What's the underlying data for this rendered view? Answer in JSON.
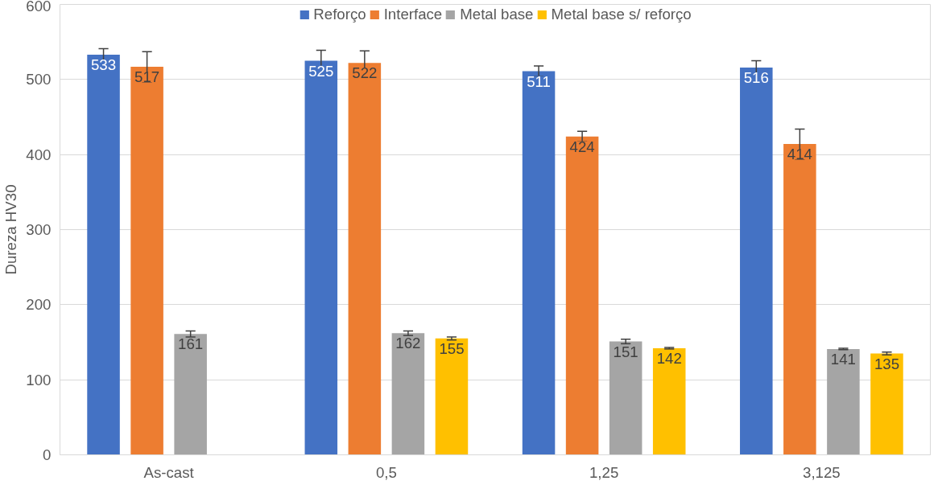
{
  "chart_data": {
    "type": "bar",
    "ylabel": "Dureza HV30",
    "categories": [
      "As-cast",
      "0,5",
      "1,25",
      "3,125"
    ],
    "series": [
      {
        "name": "Reforço",
        "color": "#4472c4",
        "values": [
          533,
          525,
          511,
          516
        ],
        "errors": [
          8,
          14,
          7,
          9
        ]
      },
      {
        "name": "Interface",
        "color": "#ed7d31",
        "values": [
          517,
          522,
          424,
          414
        ],
        "errors": [
          20,
          16,
          7,
          20
        ]
      },
      {
        "name": "Metal base",
        "color": "#a5a5a5",
        "values": [
          161,
          162,
          151,
          141
        ],
        "errors": [
          4,
          3,
          3,
          1
        ]
      },
      {
        "name": "Metal base s/ reforço",
        "color": "#ffc000",
        "values": [
          null,
          155,
          142,
          135
        ],
        "errors": [
          null,
          2,
          1,
          2
        ]
      }
    ],
    "ylim": [
      0,
      600
    ],
    "yticks": [
      0,
      100,
      200,
      300,
      400,
      500,
      600
    ],
    "grid": "y",
    "legend": "top",
    "data_labels": true
  }
}
